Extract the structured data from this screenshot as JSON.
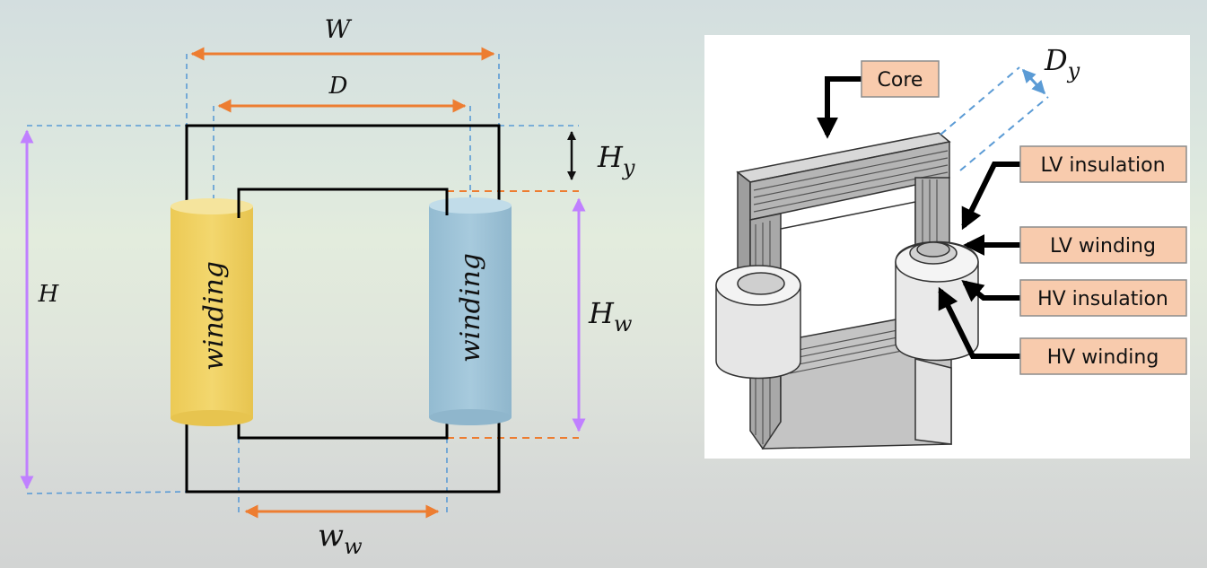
{
  "left_diagram": {
    "labels": {
      "W": "W",
      "D": "D",
      "H": "H",
      "H_y_main": "H",
      "H_y_sub": "y",
      "H_w_main": "H",
      "H_w_sub": "w",
      "w_w_main": "w",
      "w_w_sub": "w"
    },
    "windings": {
      "left_label": "winding",
      "right_label": "winding",
      "left_color": "#f0d366",
      "right_color": "#9fc4d8"
    },
    "colors": {
      "dimension_orange": "#ed7d31",
      "dimension_violet": "#c080ff",
      "guide_blue": "#5b9bd5",
      "core_outline": "#000000"
    }
  },
  "right_diagram": {
    "callouts": {
      "core": "Core",
      "lv_insulation": "LV insulation",
      "lv_winding": "LV winding",
      "hv_insulation": "HV insulation",
      "hv_winding": "HV winding"
    },
    "depth_label_main": "D",
    "depth_label_sub": "y",
    "callout_fill": "#f8cbad"
  }
}
